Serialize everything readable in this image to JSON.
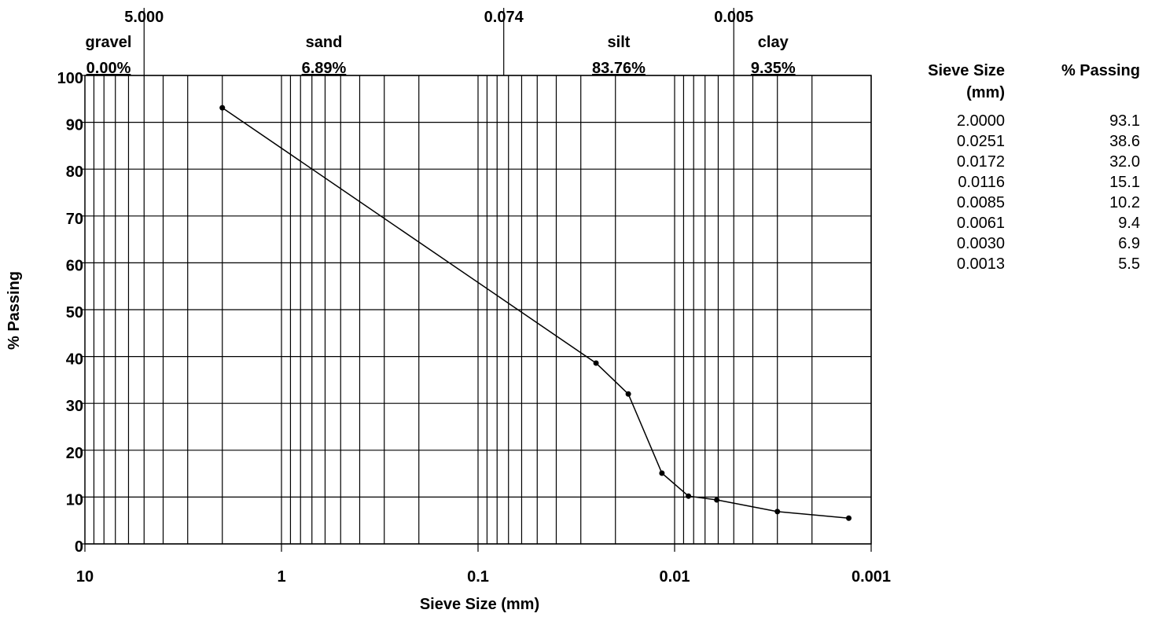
{
  "chart_data": {
    "type": "line",
    "xlabel": "Sieve Size (mm)",
    "ylabel": "% Passing",
    "x_scale": "log",
    "x_reversed": true,
    "xlim": [
      10,
      0.001
    ],
    "ylim": [
      0,
      100
    ],
    "grid": true,
    "x_tick_labels": [
      "10",
      "1",
      "0.1",
      "0.01",
      "0.001"
    ],
    "y_tick_labels": [
      "0",
      "10",
      "20",
      "30",
      "40",
      "50",
      "60",
      "70",
      "80",
      "90",
      "100"
    ],
    "boundaries": [
      {
        "size": 5.0,
        "label": "5.000"
      },
      {
        "size": 0.074,
        "label": "0.074"
      },
      {
        "size": 0.005,
        "label": "0.005"
      }
    ],
    "fractions": [
      {
        "name": "gravel",
        "percent": "0.00%"
      },
      {
        "name": "sand",
        "percent": "6.89%"
      },
      {
        "name": "silt",
        "percent": "83.76%"
      },
      {
        "name": "clay",
        "percent": "9.35%"
      }
    ],
    "points": [
      {
        "size": "2.0000",
        "passing": "93.1"
      },
      {
        "size": "0.0251",
        "passing": "38.6"
      },
      {
        "size": "0.0172",
        "passing": "32.0"
      },
      {
        "size": "0.0116",
        "passing": "15.1"
      },
      {
        "size": "0.0085",
        "passing": "10.2"
      },
      {
        "size": "0.0061",
        "passing": "9.4"
      },
      {
        "size": "0.0030",
        "passing": "6.9"
      },
      {
        "size": "0.0013",
        "passing": "5.5"
      }
    ]
  },
  "table": {
    "col1_header_line1": "Sieve Size",
    "col1_header_line2": "(mm)",
    "col2_header": "% Passing"
  }
}
